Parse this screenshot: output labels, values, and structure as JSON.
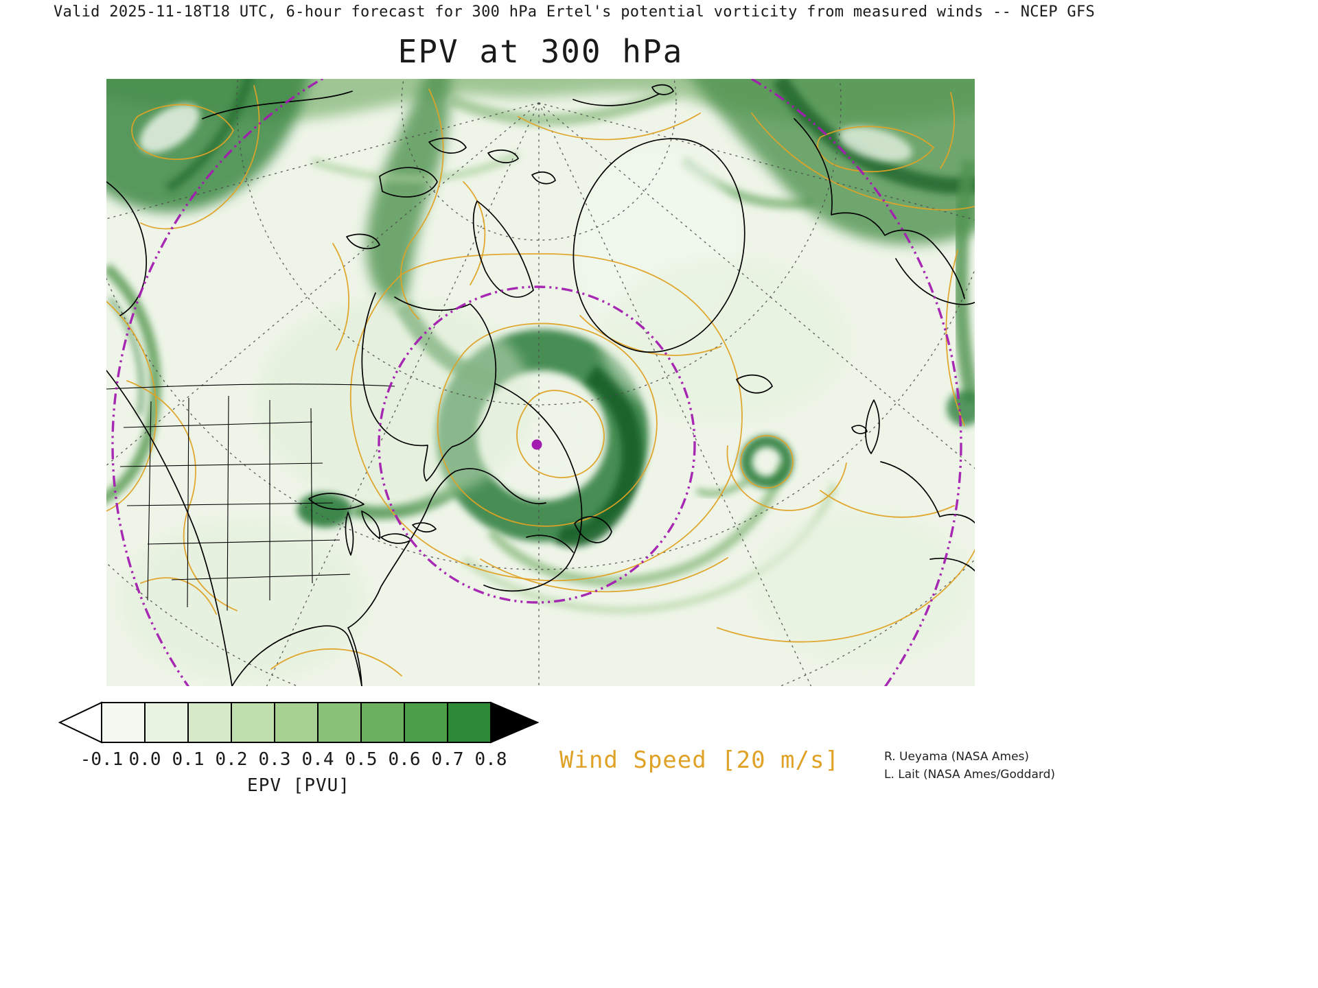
{
  "header": {
    "valid_line": "Valid 2025-11-18T18 UTC, 6-hour forecast for 300 hPa Ertel's potential vorticity from measured winds -- NCEP GFS",
    "title": "EPV at 300 hPa"
  },
  "colorbar": {
    "label": "EPV [PVU]",
    "ticks": [
      "-0.1",
      "0.0",
      "0.1",
      "0.2",
      "0.3",
      "0.4",
      "0.5",
      "0.6",
      "0.7",
      "0.8"
    ],
    "cell_colors": [
      "#f4f9f1",
      "#e8f3e1",
      "#d6eaca",
      "#c0dfae",
      "#a6d193",
      "#8ac178",
      "#6bb05e",
      "#4c9e48",
      "#2e8a37"
    ],
    "under_range_color": "#ffffff",
    "over_range_color": "#000000"
  },
  "wind_legend": {
    "label": "Wind Speed [20 m/s]"
  },
  "credits": {
    "line1": "R. Ueyama (NASA Ames)",
    "line2": "L. Lait (NASA Ames/Goddard)"
  },
  "colors": {
    "wind_contour": "#dfa226",
    "marker_magenta": "#a21caf",
    "coastline": "#000000",
    "graticule": "#4a4a4a",
    "map_background": "#eef5e8",
    "epv_dark_green": "#1e7030",
    "text": "#1a1a1a"
  },
  "chart_data": {
    "type": "heatmap",
    "title": "EPV at 300 hPa",
    "subtitle": "Valid 2025-11-18T18 UTC, 6-hour forecast for 300 hPa Ertel's potential vorticity from measured winds -- NCEP GFS",
    "model": "NCEP GFS",
    "variable": "Ertel's potential vorticity (EPV)",
    "units": "PVU",
    "level_hPa": 300,
    "colorbar_orientation": "horizontal",
    "colorbar_tick_values": [
      -0.1,
      0.0,
      0.1,
      0.2,
      0.3,
      0.4,
      0.5,
      0.6,
      0.7,
      0.8
    ],
    "colorbar_open_ended": {
      "below": -0.1,
      "above": 0.8
    },
    "shading_description": "Green filled field of EPV over a polar view of North America, Greenland, the North Atlantic and Europe; highest EPV (dark green, >0.7 PVU) in a cyclonic vortex spiral over Quebec/Labrador with a light-EPV eye at its center, in filament bands along the top of the domain, over the northwest corner, over northern Europe/Scandinavia, and in a small isolated eddy over the central North Atlantic; lowest EPV (near white) over the subtropics at the bottom of the map",
    "overlays": [
      {
        "name": "wind-speed-contours",
        "legend_label": "Wind Speed [20 m/s]",
        "contour_interval_m_s": 20,
        "color": "#dfa226"
      },
      {
        "name": "coastlines-state-and-country-borders",
        "color": "#000000"
      },
      {
        "name": "latitude-longitude-graticule",
        "style": "dashed",
        "color": "#4a4a4a"
      },
      {
        "name": "magenta-range-rings",
        "style": "dash-dot",
        "count": 2,
        "color": "#a21caf"
      },
      {
        "name": "magenta-station-dot",
        "color": "#a21caf",
        "location": "center of vortex over Labrador, at center of the range rings"
      }
    ],
    "legend_position": "bottom-left colorbar, wind-speed label bottom-center, credits bottom-right"
  }
}
